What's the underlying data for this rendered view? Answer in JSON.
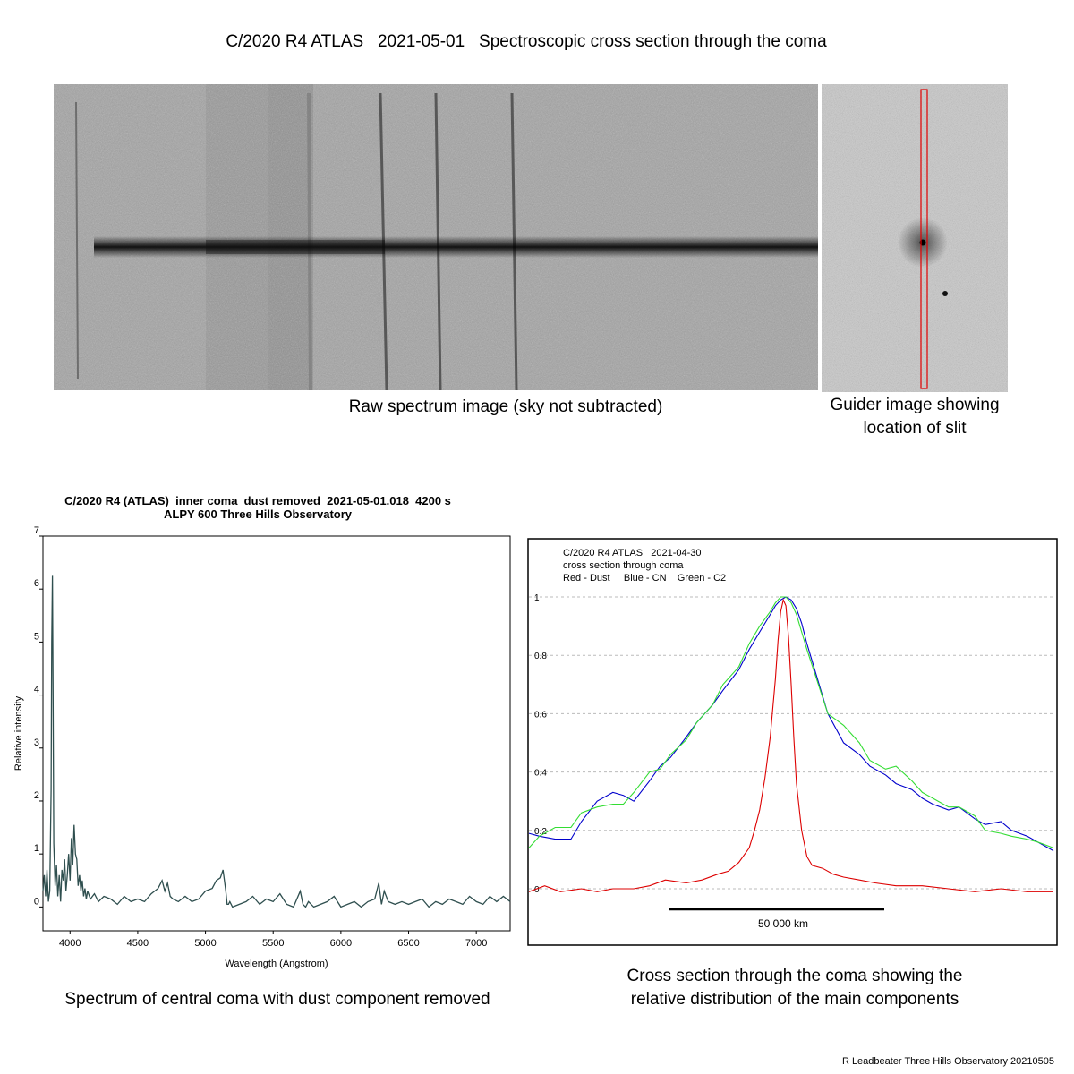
{
  "page": {
    "title": "C/2020 R4 ATLAS   2021-05-01   Spectroscopic cross section through the coma",
    "footer": "R Leadbeater Three Hills Observatory 20210505"
  },
  "raw_spectrum": {
    "caption": "Raw spectrum image (sky not subtracted)"
  },
  "guider": {
    "caption_line1": "Guider image showing",
    "caption_line2": "location of slit"
  },
  "chart_data": [
    {
      "type": "line",
      "title": "C/2020 R4 (ATLAS)  inner coma  dust removed  2021-05-01.018  4200 s",
      "subtitle": "ALPY 600 Three Hills Observatory",
      "xlabel": "Wavelength (Angstrom)",
      "ylabel": "Relative intensity",
      "xlim": [
        3800,
        7250
      ],
      "ylim": [
        -0.45,
        7
      ],
      "xticks": [
        4000,
        4500,
        5000,
        5500,
        6000,
        6500,
        7000
      ],
      "yticks": [
        0,
        1,
        2,
        3,
        4,
        5,
        6,
        7
      ],
      "grid": false,
      "caption": "Spectrum of central coma with dust component removed",
      "color": "#2f4f4f",
      "series": [
        {
          "x": [
            3800,
            3810,
            3820,
            3830,
            3840,
            3850,
            3860,
            3865,
            3870,
            3875,
            3880,
            3890,
            3900,
            3910,
            3920,
            3930,
            3940,
            3950,
            3960,
            3970,
            3980,
            3990,
            4000,
            4010,
            4020,
            4030,
            4040,
            4050,
            4060,
            4070,
            4080,
            4090,
            4100,
            4110,
            4120,
            4130,
            4150,
            4180,
            4210,
            4250,
            4300,
            4350,
            4400,
            4450,
            4500,
            4550,
            4600,
            4650,
            4680,
            4700,
            4720,
            4740,
            4760,
            4800,
            4850,
            4900,
            4950,
            5000,
            5050,
            5080,
            5110,
            5130,
            5150,
            5160,
            5170,
            5180,
            5200,
            5250,
            5300,
            5350,
            5400,
            5450,
            5500,
            5550,
            5600,
            5650,
            5700,
            5720,
            5740,
            5760,
            5800,
            5850,
            5900,
            5950,
            6000,
            6050,
            6100,
            6150,
            6200,
            6250,
            6280,
            6300,
            6320,
            6350,
            6400,
            6450,
            6500,
            6550,
            6600,
            6650,
            6700,
            6750,
            6800,
            6850,
            6900,
            6950,
            7000,
            7050,
            7100,
            7150,
            7200,
            7250
          ],
          "y": [
            0.3,
            0.6,
            0.2,
            0.7,
            0.1,
            0.3,
            2.2,
            5.0,
            6.25,
            4.0,
            1.2,
            0.4,
            0.8,
            0.2,
            0.6,
            0.1,
            0.7,
            0.5,
            0.9,
            0.3,
            0.6,
            1.0,
            0.5,
            1.3,
            0.8,
            1.55,
            1.0,
            0.9,
            0.4,
            0.6,
            0.3,
            0.5,
            0.2,
            0.35,
            0.15,
            0.3,
            0.15,
            0.25,
            0.1,
            0.2,
            0.15,
            0.05,
            0.2,
            0.1,
            0.15,
            0.1,
            0.25,
            0.35,
            0.5,
            0.3,
            0.45,
            0.2,
            0.15,
            0.1,
            0.2,
            0.1,
            0.15,
            0.3,
            0.35,
            0.5,
            0.55,
            0.7,
            0.3,
            0.05,
            0.05,
            0.1,
            0.0,
            0.05,
            0.1,
            0.2,
            0.05,
            0.15,
            0.1,
            0.25,
            0.05,
            0.0,
            0.3,
            0.05,
            0.0,
            0.1,
            0.0,
            0.05,
            0.1,
            0.2,
            0.0,
            0.05,
            0.1,
            0.0,
            0.1,
            0.15,
            0.45,
            0.05,
            0.3,
            0.1,
            0.05,
            0.1,
            0.05,
            0.1,
            0.15,
            0.0,
            0.1,
            0.05,
            0.15,
            0.1,
            0.05,
            0.2,
            0.1,
            0.05,
            0.2,
            0.1,
            0.2,
            0.1
          ]
        }
      ]
    },
    {
      "type": "line",
      "title_lines": [
        "C/2020 R4 ATLAS   2021-04-30",
        "cross section through coma",
        "Red - Dust     Blue - CN    Green - C2"
      ],
      "ylim": [
        -0.05,
        1.03
      ],
      "yticks": [
        0,
        0.2,
        0.4,
        0.6,
        0.8,
        1
      ],
      "grid": true,
      "scale_bar_label": "50 000 km",
      "caption_line1": "Cross section through the coma showing the",
      "caption_line2": "relative distribution of the main components",
      "series": [
        {
          "color": "#0000cc",
          "x": [
            0,
            0.02,
            0.05,
            0.08,
            0.1,
            0.13,
            0.16,
            0.18,
            0.2,
            0.23,
            0.25,
            0.27,
            0.3,
            0.32,
            0.35,
            0.37,
            0.4,
            0.42,
            0.44,
            0.46,
            0.47,
            0.48,
            0.49,
            0.5,
            0.51,
            0.52,
            0.53,
            0.55,
            0.57,
            0.6,
            0.63,
            0.65,
            0.68,
            0.7,
            0.73,
            0.75,
            0.77,
            0.8,
            0.82,
            0.85,
            0.87,
            0.9,
            0.92,
            0.95,
            0.97,
            1.0
          ],
          "y": [
            0.19,
            0.18,
            0.17,
            0.17,
            0.23,
            0.3,
            0.33,
            0.32,
            0.3,
            0.37,
            0.42,
            0.45,
            0.52,
            0.57,
            0.63,
            0.68,
            0.75,
            0.82,
            0.88,
            0.94,
            0.97,
            0.99,
            1.0,
            0.99,
            0.96,
            0.91,
            0.84,
            0.72,
            0.6,
            0.5,
            0.46,
            0.42,
            0.39,
            0.36,
            0.34,
            0.31,
            0.29,
            0.27,
            0.28,
            0.24,
            0.22,
            0.23,
            0.2,
            0.18,
            0.16,
            0.13
          ]
        },
        {
          "color": "#33dd33",
          "x": [
            0,
            0.02,
            0.05,
            0.08,
            0.1,
            0.13,
            0.16,
            0.18,
            0.2,
            0.23,
            0.25,
            0.27,
            0.3,
            0.32,
            0.35,
            0.37,
            0.4,
            0.42,
            0.44,
            0.46,
            0.47,
            0.48,
            0.49,
            0.5,
            0.51,
            0.52,
            0.53,
            0.55,
            0.57,
            0.6,
            0.63,
            0.65,
            0.68,
            0.7,
            0.73,
            0.75,
            0.77,
            0.8,
            0.82,
            0.85,
            0.87,
            0.9,
            0.92,
            0.95,
            0.97,
            1.0
          ],
          "y": [
            0.14,
            0.18,
            0.21,
            0.21,
            0.26,
            0.28,
            0.29,
            0.29,
            0.33,
            0.4,
            0.41,
            0.46,
            0.51,
            0.57,
            0.63,
            0.7,
            0.76,
            0.84,
            0.9,
            0.95,
            0.98,
            1.0,
            1.0,
            0.98,
            0.94,
            0.88,
            0.82,
            0.71,
            0.6,
            0.56,
            0.5,
            0.44,
            0.41,
            0.42,
            0.37,
            0.33,
            0.31,
            0.28,
            0.28,
            0.25,
            0.2,
            0.19,
            0.18,
            0.17,
            0.16,
            0.14
          ]
        },
        {
          "color": "#dd0000",
          "x": [
            0,
            0.03,
            0.06,
            0.1,
            0.13,
            0.16,
            0.2,
            0.23,
            0.26,
            0.3,
            0.33,
            0.36,
            0.38,
            0.4,
            0.42,
            0.43,
            0.44,
            0.45,
            0.46,
            0.47,
            0.475,
            0.48,
            0.485,
            0.49,
            0.495,
            0.5,
            0.505,
            0.51,
            0.52,
            0.53,
            0.54,
            0.56,
            0.58,
            0.6,
            0.63,
            0.66,
            0.7,
            0.75,
            0.8,
            0.85,
            0.9,
            0.95,
            1.0
          ],
          "y": [
            -0.01,
            0.01,
            -0.01,
            0.0,
            -0.01,
            0.0,
            0.0,
            0.01,
            0.03,
            0.02,
            0.03,
            0.05,
            0.06,
            0.09,
            0.14,
            0.2,
            0.27,
            0.38,
            0.52,
            0.72,
            0.85,
            0.95,
            0.99,
            0.97,
            0.86,
            0.7,
            0.52,
            0.36,
            0.2,
            0.11,
            0.08,
            0.07,
            0.05,
            0.04,
            0.03,
            0.02,
            0.01,
            0.01,
            0.0,
            -0.01,
            0.0,
            -0.01,
            -0.01
          ]
        }
      ]
    }
  ]
}
